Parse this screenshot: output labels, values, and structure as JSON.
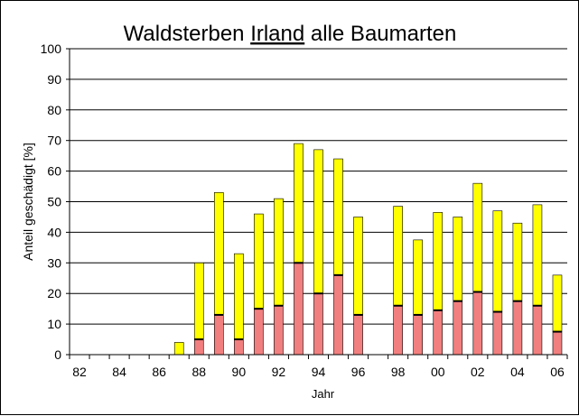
{
  "title": {
    "part1": "Waldsterben ",
    "part2": "Irland",
    "part3": " alle Baumarten"
  },
  "colors": {
    "background": "#ffffff",
    "plot_background": "#ffffff",
    "gridline": "#000000",
    "damaged_stack": "#f27f7f",
    "moderate_stack": "#ffff00",
    "bar_outline": "#000000"
  },
  "chart_data": {
    "type": "bar",
    "stacked": true,
    "title": "Waldsterben Irland alle Baumarten",
    "xlabel": "Jahr",
    "ylabel": "Anteil geschädigt [%]",
    "ylim": [
      0,
      100
    ],
    "yticks": [
      0,
      10,
      20,
      30,
      40,
      50,
      60,
      70,
      80,
      90,
      100
    ],
    "grid": true,
    "legend": "none",
    "categories": [
      "82",
      "83",
      "84",
      "85",
      "86",
      "87",
      "88",
      "89",
      "90",
      "91",
      "92",
      "93",
      "94",
      "95",
      "96",
      "97",
      "98",
      "99",
      "00",
      "01",
      "02",
      "03",
      "04",
      "05",
      "06"
    ],
    "x_tick_labels": [
      "82",
      "",
      "84",
      "",
      "86",
      "",
      "88",
      "",
      "90",
      "",
      "92",
      "",
      "94",
      "",
      "96",
      "",
      "98",
      "",
      "00",
      "",
      "02",
      "",
      "04",
      "",
      "06"
    ],
    "series": [
      {
        "color": "#f27f7f",
        "values": [
          null,
          null,
          null,
          null,
          null,
          0,
          5,
          13,
          5,
          15,
          16,
          30,
          20,
          26,
          13,
          null,
          16,
          13,
          14.5,
          17.5,
          20.5,
          14,
          17.5,
          16,
          7.5
        ]
      },
      {
        "color": "#ffff00",
        "values": [
          null,
          null,
          null,
          null,
          null,
          4,
          25,
          40,
          28,
          31,
          35,
          39,
          47,
          38,
          32,
          null,
          32.5,
          24.5,
          32,
          27.5,
          35.5,
          33,
          25.5,
          33,
          18.5
        ]
      }
    ]
  }
}
